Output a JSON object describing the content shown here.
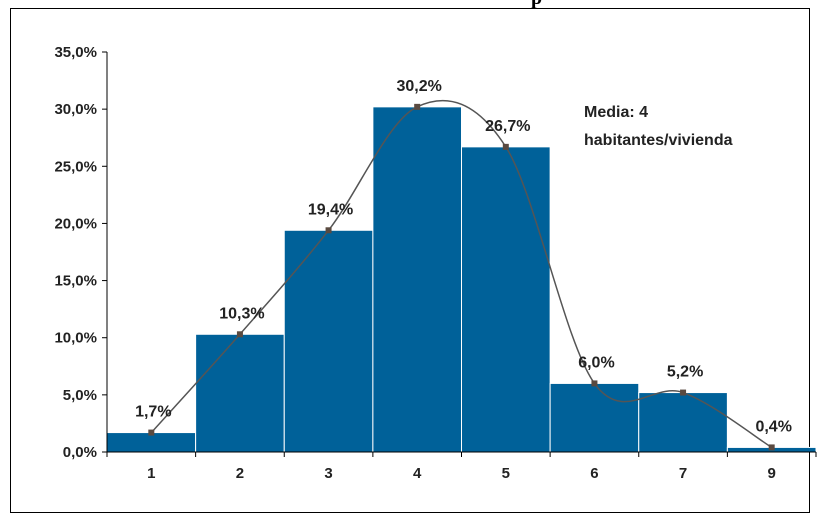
{
  "header": {
    "clipped_title": "p"
  },
  "chart_data": {
    "type": "bar",
    "categories": [
      "1",
      "2",
      "3",
      "4",
      "5",
      "6",
      "7",
      "9"
    ],
    "values": [
      1.7,
      10.3,
      19.4,
      30.2,
      26.7,
      6.0,
      5.2,
      0.4
    ],
    "data_labels": [
      "1,7%",
      "10,3%",
      "19,4%",
      "30,2%",
      "26,7%",
      "6,0%",
      "5,2%",
      "0,4%"
    ],
    "y_ticks": [
      0,
      5,
      10,
      15,
      20,
      25,
      30,
      35
    ],
    "y_tick_labels": [
      "0,0%",
      "5,0%",
      "10,0%",
      "15,0%",
      "20,0%",
      "25,0%",
      "30,0%",
      "35,0%"
    ],
    "ylim": [
      0,
      35
    ],
    "title": "",
    "xlabel": "",
    "ylabel": "",
    "grid": false,
    "overlay": "smoothed line through bar tops with square markers",
    "annotation": [
      "Media: 4",
      "habitantes/vivienda"
    ],
    "colors": {
      "bar": "#006199",
      "bar_edge": "#ffffff",
      "line": "#555555",
      "marker": "#5a4a40",
      "axis": "#000000"
    }
  }
}
